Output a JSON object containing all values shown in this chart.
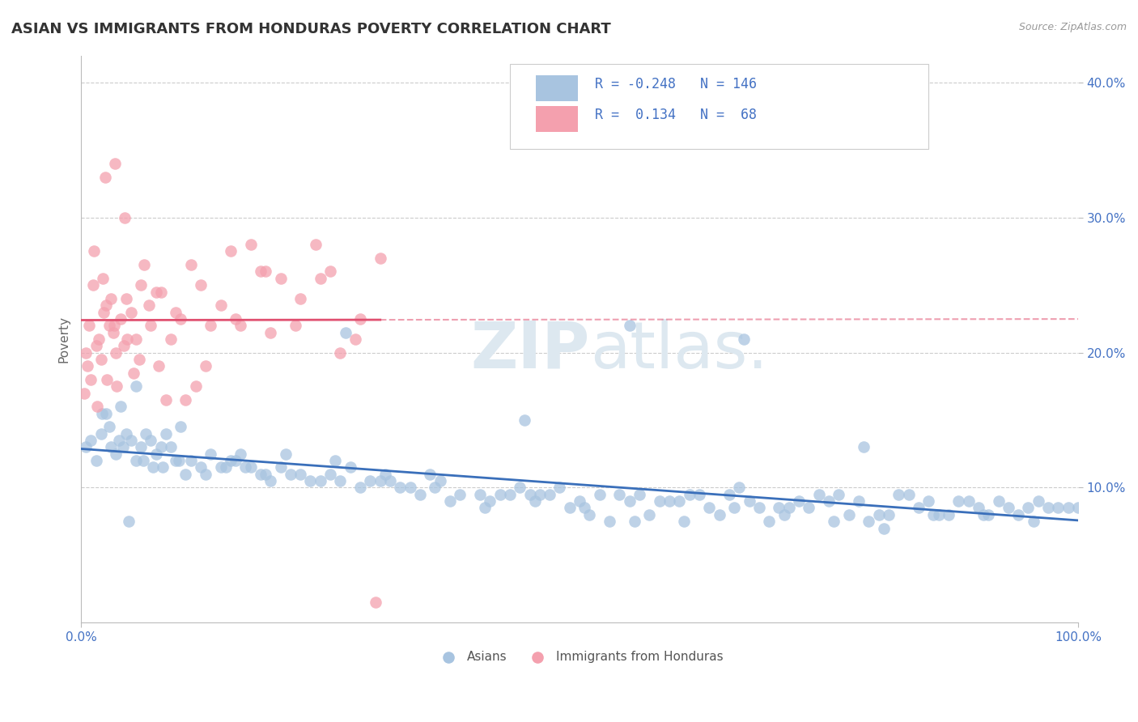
{
  "title": "ASIAN VS IMMIGRANTS FROM HONDURAS POVERTY CORRELATION CHART",
  "source": "Source: ZipAtlas.com",
  "ylabel": "Poverty",
  "xlim": [
    0,
    100
  ],
  "ylim": [
    0,
    42
  ],
  "blue_color": "#a8c4e0",
  "pink_color": "#f4a0ae",
  "blue_line_color": "#3a6fba",
  "pink_line_color": "#e05070",
  "background_color": "#ffffff",
  "legend_blue_r": "-0.248",
  "legend_blue_n": "146",
  "legend_pink_r": "0.134",
  "legend_pink_n": "68",
  "blue_x": [
    0.5,
    1.0,
    1.5,
    2.0,
    2.5,
    3.0,
    3.5,
    4.0,
    4.5,
    5.0,
    5.5,
    6.0,
    6.5,
    7.0,
    7.5,
    8.0,
    8.5,
    9.0,
    9.5,
    10.0,
    11.0,
    12.0,
    13.0,
    14.0,
    15.0,
    16.0,
    17.0,
    18.0,
    19.0,
    20.0,
    22.0,
    24.0,
    25.0,
    26.0,
    27.0,
    28.0,
    30.0,
    32.0,
    34.0,
    35.0,
    36.0,
    38.0,
    40.0,
    42.0,
    44.0,
    45.0,
    46.0,
    48.0,
    50.0,
    52.0,
    54.0,
    55.0,
    56.0,
    58.0,
    60.0,
    62.0,
    64.0,
    65.0,
    66.0,
    68.0,
    70.0,
    72.0,
    74.0,
    75.0,
    76.0,
    78.0,
    80.0,
    82.0,
    84.0,
    85.0,
    86.0,
    88.0,
    90.0,
    92.0,
    93.0,
    94.0,
    95.0,
    96.0,
    97.0,
    98.0,
    99.0,
    100.0,
    2.8,
    3.8,
    4.2,
    6.2,
    7.2,
    8.2,
    10.5,
    12.5,
    14.5,
    16.5,
    18.5,
    21.0,
    23.0,
    29.0,
    31.0,
    33.0,
    37.0,
    41.0,
    43.0,
    47.0,
    49.0,
    51.0,
    53.0,
    57.0,
    59.0,
    61.0,
    63.0,
    67.0,
    69.0,
    71.0,
    73.0,
    77.0,
    79.0,
    81.0,
    83.0,
    87.0,
    89.0,
    91.0,
    4.8,
    9.8,
    15.5,
    20.5,
    25.5,
    30.5,
    35.5,
    40.5,
    45.5,
    50.5,
    55.5,
    60.5,
    65.5,
    70.5,
    75.5,
    80.5,
    85.5,
    90.5,
    95.5,
    2.1,
    5.5,
    26.5,
    44.5,
    55.0,
    66.5,
    78.5
  ],
  "blue_y": [
    13.0,
    13.5,
    12.0,
    14.0,
    15.5,
    13.0,
    12.5,
    16.0,
    14.0,
    13.5,
    12.0,
    13.0,
    14.0,
    13.5,
    12.5,
    13.0,
    14.0,
    13.0,
    12.0,
    14.5,
    12.0,
    11.5,
    12.5,
    11.5,
    12.0,
    12.5,
    11.5,
    11.0,
    10.5,
    11.5,
    11.0,
    10.5,
    11.0,
    10.5,
    11.5,
    10.0,
    10.5,
    10.0,
    9.5,
    11.0,
    10.5,
    9.5,
    9.5,
    9.5,
    10.0,
    9.5,
    9.5,
    10.0,
    9.0,
    9.5,
    9.5,
    9.0,
    9.5,
    9.0,
    9.0,
    9.5,
    8.0,
    9.5,
    10.0,
    8.5,
    8.5,
    9.0,
    9.5,
    9.0,
    9.5,
    9.0,
    8.0,
    9.5,
    8.5,
    9.0,
    8.0,
    9.0,
    8.5,
    9.0,
    8.5,
    8.0,
    8.5,
    9.0,
    8.5,
    8.5,
    8.5,
    8.5,
    14.5,
    13.5,
    13.0,
    12.0,
    11.5,
    11.5,
    11.0,
    11.0,
    11.5,
    11.5,
    11.0,
    11.0,
    10.5,
    10.5,
    10.5,
    10.0,
    9.0,
    9.0,
    9.5,
    9.5,
    8.5,
    8.0,
    7.5,
    8.0,
    9.0,
    9.5,
    8.5,
    9.0,
    7.5,
    8.5,
    8.5,
    8.0,
    7.5,
    8.0,
    9.5,
    8.0,
    9.0,
    8.0,
    7.5,
    12.0,
    12.0,
    12.5,
    12.0,
    11.0,
    10.0,
    8.5,
    9.0,
    8.5,
    7.5,
    7.5,
    8.5,
    8.0,
    7.5,
    7.0,
    8.0,
    8.0,
    7.5,
    15.5,
    17.5,
    21.5,
    15.0,
    22.0,
    21.0,
    13.0
  ],
  "pink_x": [
    0.5,
    0.8,
    1.0,
    1.2,
    1.5,
    1.8,
    2.0,
    2.2,
    2.5,
    2.8,
    3.0,
    3.2,
    3.5,
    4.0,
    4.5,
    5.0,
    5.5,
    6.0,
    7.0,
    8.0,
    9.0,
    10.0,
    11.0,
    12.0,
    14.0,
    15.0,
    16.0,
    18.0,
    20.0,
    22.0,
    25.0,
    28.0,
    30.0,
    0.3,
    0.6,
    1.3,
    2.3,
    3.3,
    4.3,
    5.3,
    6.3,
    7.5,
    9.5,
    13.0,
    17.0,
    19.0,
    24.0,
    26.0,
    5.8,
    8.5,
    12.5,
    1.6,
    2.6,
    3.6,
    4.6,
    6.8,
    10.5,
    15.5,
    21.5,
    27.5,
    2.4,
    3.4,
    4.4,
    7.8,
    11.5,
    18.5,
    23.5,
    29.5
  ],
  "pink_y": [
    20.0,
    22.0,
    18.0,
    25.0,
    20.5,
    21.0,
    19.5,
    25.5,
    23.5,
    22.0,
    24.0,
    21.5,
    20.0,
    22.5,
    24.0,
    23.0,
    21.0,
    25.0,
    22.0,
    24.5,
    21.0,
    22.5,
    26.5,
    25.0,
    23.5,
    27.5,
    22.0,
    26.0,
    25.5,
    24.0,
    26.0,
    22.5,
    27.0,
    17.0,
    19.0,
    27.5,
    23.0,
    22.0,
    20.5,
    18.5,
    26.5,
    24.5,
    23.0,
    22.0,
    28.0,
    21.5,
    25.5,
    20.0,
    19.5,
    16.5,
    19.0,
    16.0,
    18.0,
    17.5,
    21.0,
    23.5,
    16.5,
    22.5,
    22.0,
    21.0,
    33.0,
    34.0,
    30.0,
    19.0,
    17.5,
    26.0,
    28.0,
    1.5
  ]
}
